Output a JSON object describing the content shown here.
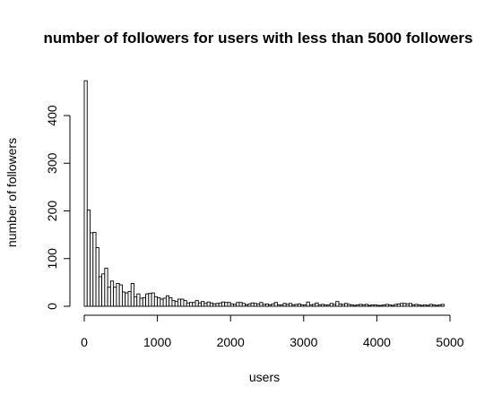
{
  "chart_data": {
    "type": "bar",
    "title": "number of followers for users with less than 5000 followers",
    "xlabel": "users",
    "ylabel": "number of followers",
    "xlim": [
      0,
      5000
    ],
    "ylim": [
      0,
      480
    ],
    "bin_width": 40,
    "x_ticks": [
      0,
      1000,
      2000,
      3000,
      4000,
      5000
    ],
    "y_ticks": [
      0,
      100,
      200,
      300,
      400
    ],
    "grid": false,
    "legend": "none",
    "bar_fill": "#ffffff",
    "bar_stroke": "#000000",
    "values": [
      473,
      202,
      154,
      155,
      123,
      62,
      68,
      80,
      40,
      53,
      40,
      48,
      45,
      30,
      28,
      31,
      48,
      20,
      26,
      17,
      18,
      26,
      27,
      28,
      20,
      18,
      15,
      17,
      22,
      18,
      12,
      10,
      15,
      15,
      12,
      7,
      8,
      8,
      12,
      7,
      10,
      6,
      9,
      7,
      5,
      6,
      7,
      9,
      8,
      8,
      5,
      4,
      8,
      8,
      6,
      3,
      5,
      7,
      6,
      5,
      8,
      4,
      5,
      3,
      5,
      8,
      3,
      3,
      6,
      4,
      6,
      3,
      4,
      5,
      3,
      3,
      9,
      3,
      4,
      7,
      3,
      4,
      3,
      3,
      6,
      4,
      10,
      5,
      4,
      6,
      4,
      3,
      2,
      3,
      4,
      3,
      4,
      2,
      3,
      3,
      2,
      2,
      3,
      4,
      3,
      2,
      4,
      5,
      6,
      6,
      5,
      6,
      3,
      4,
      3,
      2,
      3,
      2,
      4,
      3,
      2,
      3,
      4
    ]
  }
}
